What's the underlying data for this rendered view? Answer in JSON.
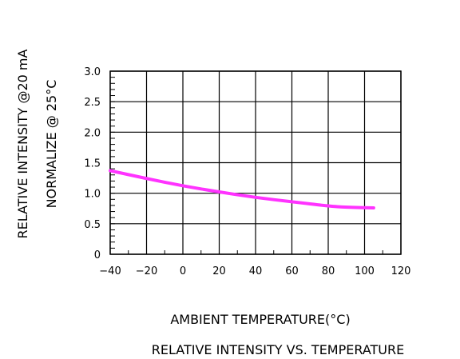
{
  "chart_data": {
    "type": "line",
    "title": "RELATIVE  INTENSITY  VS.  TEMPERATURE",
    "xlabel": "AMBIENT  TEMPERATURE(°C)",
    "ylabel_line1": "RELATIVE  INTENSITY  @20  mA",
    "ylabel_line2": "NORMALIZE  @  25°C",
    "xlim": [
      -40,
      120
    ],
    "ylim": [
      0,
      3.0
    ],
    "x_ticks": [
      -40,
      -20,
      0,
      20,
      40,
      60,
      80,
      100,
      120
    ],
    "x_tick_labels": [
      "−40",
      "−20",
      "0",
      "20",
      "40",
      "60",
      "80",
      "100",
      "120"
    ],
    "y_ticks": [
      0,
      0.5,
      1.0,
      1.5,
      2.0,
      2.5,
      3.0
    ],
    "y_tick_labels": [
      "0",
      "0.5",
      "1.0",
      "1.5",
      "2.0",
      "2.5",
      "3.0"
    ],
    "grid": true,
    "series": [
      {
        "color": "#ff33ff",
        "x": [
          -40,
          -20,
          0,
          20,
          40,
          60,
          80,
          90,
          105
        ],
        "y": [
          1.37,
          1.24,
          1.12,
          1.02,
          0.93,
          0.86,
          0.79,
          0.77,
          0.76
        ]
      }
    ]
  }
}
